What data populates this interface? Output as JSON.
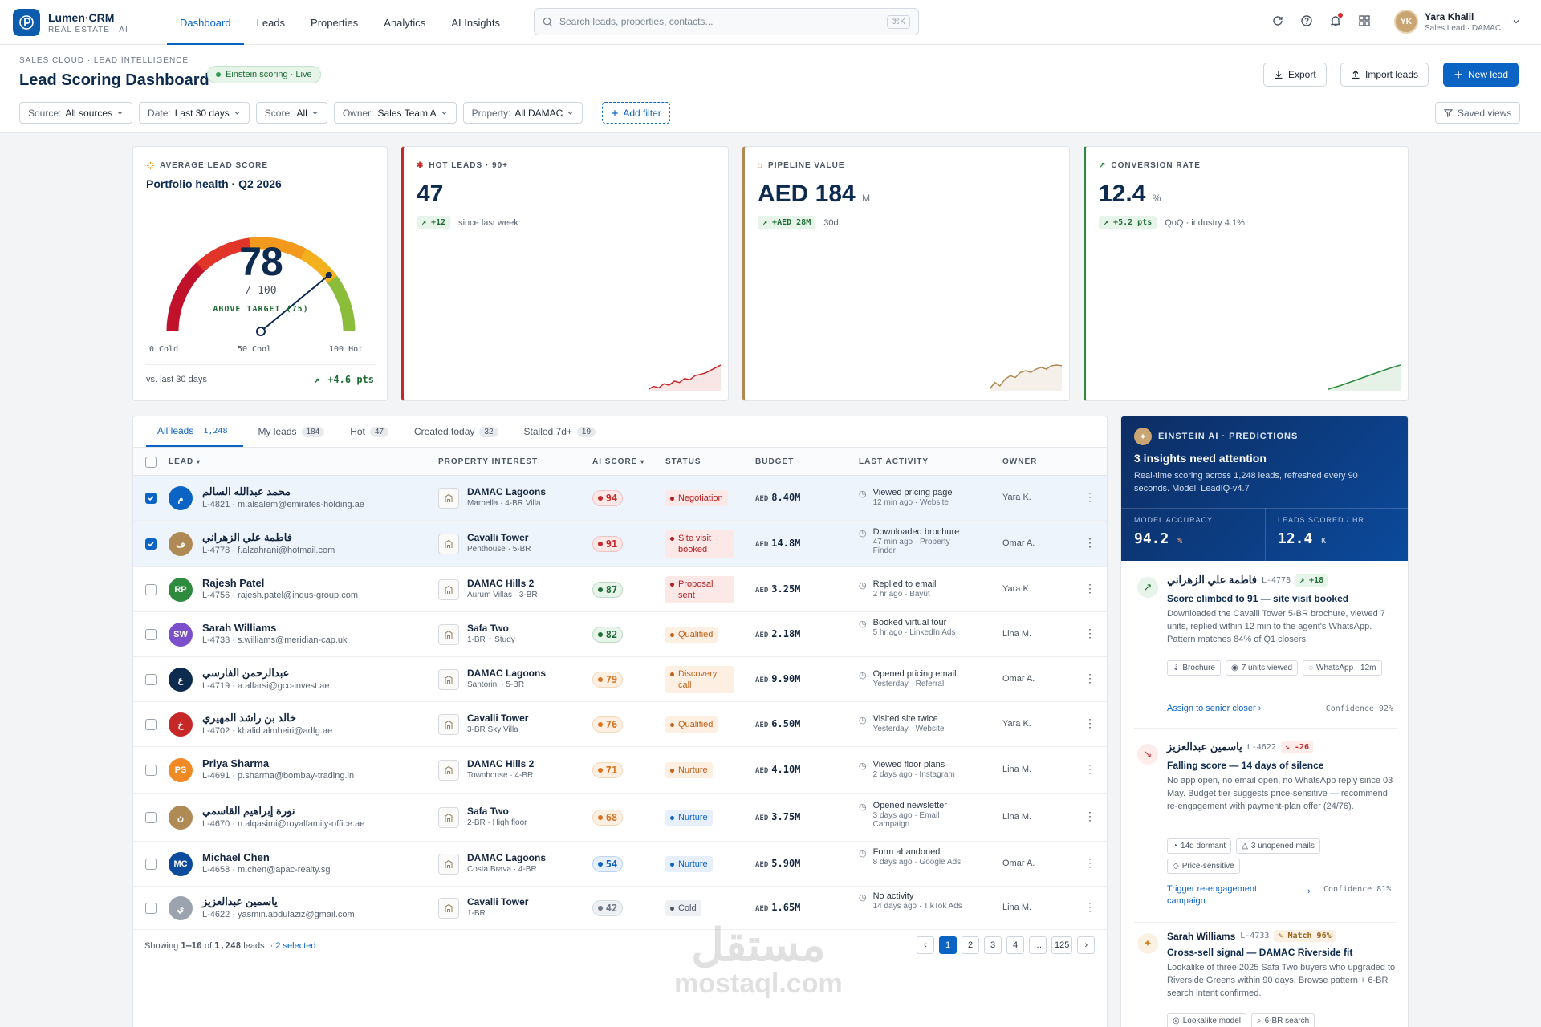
{
  "app": {
    "name": "Lumen·CRM",
    "sub": "REAL ESTATE · AI"
  },
  "nav": {
    "tabs": [
      "Dashboard",
      "Leads",
      "Properties",
      "Analytics",
      "AI Insights"
    ]
  },
  "search": {
    "placeholder": "Search leads, properties, contacts...",
    "shortcut": "⌘K"
  },
  "user": {
    "initials": "YK",
    "name": "Yara Khalil",
    "role": "Sales Lead · DAMAC"
  },
  "header": {
    "breadcrumb": "SALES CLOUD · LEAD INTELLIGENCE",
    "title": "Lead Scoring Dashboard",
    "live": "Einstein scoring · Live",
    "export": "Export",
    "import": "Import leads",
    "new": "New lead"
  },
  "filters": [
    {
      "k": "Source:",
      "v": "All sources"
    },
    {
      "k": "Date:",
      "v": "Last 30 days"
    },
    {
      "k": "Score:",
      "v": "All"
    },
    {
      "k": "Owner:",
      "v": "Sales Team A"
    },
    {
      "k": "Property:",
      "v": "All DAMAC"
    }
  ],
  "add_filter": "Add filter",
  "saved_views": "Saved views",
  "gauge": {
    "label": "AVERAGE LEAD SCORE",
    "title": "Portfolio health · Q2 2026",
    "value": "78",
    "max": "/ 100",
    "note": "ABOVE TARGET (75)",
    "value_num": 78,
    "min_label": "0 Cold",
    "mid_label": "50 Cool",
    "max_label": "100 Hot",
    "footer": "vs. last 30 days",
    "delta": "+4.6 pts",
    "colors": {
      "cold": "#c0122b",
      "warm": "#f39a1e",
      "hot": "#2e8b3e"
    }
  },
  "kpis": [
    {
      "label": "HOT LEADS · 90+",
      "value": "47",
      "unit": "",
      "chip": "+12",
      "note": "since last week",
      "color": "#c62828",
      "spark": [
        3,
        4,
        3.5,
        5,
        4.5,
        6,
        5.5,
        7,
        6.5,
        8,
        8.5,
        9,
        10,
        11,
        12
      ]
    },
    {
      "label": "PIPELINE VALUE",
      "value": "AED 184",
      "unit": "M",
      "chip": "+AED 28M",
      "note": "30d",
      "color": "#b08a55",
      "spark": [
        3,
        5,
        4,
        6,
        7,
        6.5,
        8,
        8.5,
        8,
        9,
        9.5,
        9,
        10,
        10.2,
        10
      ]
    },
    {
      "label": "CONVERSION RATE",
      "value": "12.4",
      "unit": "%",
      "chip": "+5.2 pts",
      "note": "QoQ · industry 4.1%",
      "color": "#2e8b3e",
      "spark": [
        2,
        2.5,
        3,
        3.6,
        4.2,
        4.8,
        5.4,
        6,
        6.6,
        7.2,
        7.8,
        8.4,
        9,
        9.5,
        10
      ]
    }
  ],
  "table": {
    "tabs": [
      {
        "label": "All leads",
        "count": "1,248"
      },
      {
        "label": "My leads",
        "count": "184"
      },
      {
        "label": "Hot",
        "count": "47"
      },
      {
        "label": "Created today",
        "count": "32"
      },
      {
        "label": "Stalled 7d+",
        "count": "19"
      }
    ],
    "headers": [
      "LEAD",
      "PROPERTY INTEREST",
      "AI SCORE",
      "STATUS",
      "BUDGET",
      "LAST ACTIVITY",
      "OWNER"
    ],
    "rows": [
      {
        "sel": true,
        "initial": "م",
        "avc": "#0b63c4",
        "name": "محمد عبدالله السالم",
        "sub": "L-4821 · m.alsalem@emirates-holding.ae",
        "prop": "DAMAC Lagoons",
        "psub": "Marbella · 4-BR Villa",
        "score": "94",
        "tier": "hot",
        "status": "Negotiation",
        "st": "red",
        "ccy": "AED",
        "budget": "8.40M",
        "act": "Viewed pricing page",
        "asub": "12 min ago · Website",
        "owner": "Yara K."
      },
      {
        "sel": true,
        "initial": "ف",
        "avc": "#b08a55",
        "name": "فاطمة علي الزهراني",
        "sub": "L-4778 · f.alzahrani@hotmail.com",
        "prop": "Cavalli Tower",
        "psub": "Penthouse · 5-BR",
        "score": "91",
        "tier": "hot",
        "status": "Site visit booked",
        "st": "red",
        "ccy": "AED",
        "budget": "14.8M",
        "act": "Downloaded brochure",
        "asub": "47 min ago · Property Finder",
        "owner": "Omar A."
      },
      {
        "sel": false,
        "initial": "RP",
        "avc": "#2e8b3e",
        "name": "Rajesh Patel",
        "sub": "L-4756 · rajesh.patel@indus-group.com",
        "prop": "DAMAC Hills 2",
        "psub": "Aurum Villas · 3-BR",
        "score": "87",
        "tier": "good",
        "status": "Proposal sent",
        "st": "red",
        "ccy": "AED",
        "budget": "3.25M",
        "act": "Replied to email",
        "asub": "2 hr ago · Bayut",
        "owner": "Yara K."
      },
      {
        "sel": false,
        "initial": "SW",
        "avc": "#7b4fc9",
        "name": "Sarah Williams",
        "sub": "L-4733 · s.williams@meridian-cap.uk",
        "prop": "Safa Two",
        "psub": "1-BR + Study",
        "score": "82",
        "tier": "good",
        "status": "Qualified",
        "st": "orange",
        "ccy": "AED",
        "budget": "2.18M",
        "act": "Booked virtual tour",
        "asub": "5 hr ago · LinkedIn Ads",
        "owner": "Lina M."
      },
      {
        "sel": false,
        "initial": "ع",
        "avc": "#0d2a4f",
        "name": "عبدالرحمن الفارسي",
        "sub": "L-4719 · a.alfarsi@gcc-invest.ae",
        "prop": "DAMAC Lagoons",
        "psub": "Santorini · 5-BR",
        "score": "79",
        "tier": "warm",
        "status": "Discovery call",
        "st": "orange",
        "ccy": "AED",
        "budget": "9.90M",
        "act": "Opened pricing email",
        "asub": "Yesterday · Referral",
        "owner": "Omar A."
      },
      {
        "sel": false,
        "initial": "خ",
        "avc": "#c62828",
        "name": "خالد بن راشد المهيري",
        "sub": "L-4702 · khalid.almheiri@adfg.ae",
        "prop": "Cavalli Tower",
        "psub": "3-BR Sky Villa",
        "score": "76",
        "tier": "warm",
        "status": "Qualified",
        "st": "orange",
        "ccy": "AED",
        "budget": "6.50M",
        "act": "Visited site twice",
        "asub": "Yesterday · Website",
        "owner": "Yara K."
      },
      {
        "sel": false,
        "initial": "PS",
        "avc": "#f08a24",
        "name": "Priya Sharma",
        "sub": "L-4691 · p.sharma@bombay-trading.in",
        "prop": "DAMAC Hills 2",
        "psub": "Townhouse · 4-BR",
        "score": "71",
        "tier": "warm",
        "status": "Nurture",
        "st": "orange",
        "ccy": "AED",
        "budget": "4.10M",
        "act": "Viewed floor plans",
        "asub": "2 days ago · Instagram",
        "owner": "Lina M."
      },
      {
        "sel": false,
        "initial": "ن",
        "avc": "#b08a55",
        "name": "نورة إبراهيم القاسمي",
        "sub": "L-4670 · n.alqasimi@royalfamily-office.ae",
        "prop": "Safa Two",
        "psub": "2-BR · High floor",
        "score": "68",
        "tier": "warm",
        "status": "Nurture",
        "st": "blue",
        "ccy": "AED",
        "budget": "3.75M",
        "act": "Opened newsletter",
        "asub": "3 days ago · Email Campaign",
        "owner": "Lina M."
      },
      {
        "sel": false,
        "initial": "MC",
        "avc": "#0b4a9c",
        "name": "Michael Chen",
        "sub": "L-4658 · m.chen@apac-realty.sg",
        "prop": "DAMAC Lagoons",
        "psub": "Costa Brava · 4-BR",
        "score": "54",
        "tier": "cool",
        "status": "Nurture",
        "st": "blue",
        "ccy": "AED",
        "budget": "5.90M",
        "act": "Form abandoned",
        "asub": "8 days ago · Google Ads",
        "owner": "Omar A."
      },
      {
        "sel": false,
        "initial": "ي",
        "avc": "#9aa3ae",
        "name": "ياسمين عبدالعزيز",
        "sub": "L-4622 · yasmin.abdulaziz@gmail.com",
        "prop": "Cavalli Tower",
        "psub": "1-BR",
        "score": "42",
        "tier": "cold",
        "status": "Cold",
        "st": "grey",
        "ccy": "AED",
        "budget": "1.65M",
        "act": "No activity",
        "asub": "14 days ago · TikTok Ads",
        "owner": "Lina M."
      }
    ],
    "footer": {
      "showing": "Showing",
      "range": "1–10",
      "of": "of",
      "total": "1,248",
      "leads": "leads",
      "selected": "· 2 selected"
    },
    "pages": [
      "1",
      "2",
      "3",
      "4",
      "…",
      "125"
    ]
  },
  "einstein": {
    "label": "EINSTEIN AI · PREDICTIONS",
    "title": "3 insights need attention",
    "desc": "Real-time scoring across 1,248 leads, refreshed every 90 seconds. Model: LeadIQ-v4.7",
    "m1_label": "MODEL ACCURACY",
    "m1_value": "94.2",
    "m1_unit": "%",
    "m2_label": "LEADS SCORED / HR",
    "m2_value": "12.4",
    "m2_unit": "K",
    "insights": [
      {
        "name": "فاطمة علي الزهراني",
        "id": "L-4778",
        "badge": "+18",
        "title": "Score climbed to 91 — site visit booked",
        "text": "Downloaded the Cavalli Tower 5-BR brochure, viewed 7 units, replied within 12 min to the agent's WhatsApp. Pattern matches 84% of Q1 closers.",
        "tags": [
          "Brochure",
          "7 units viewed",
          "WhatsApp · 12m"
        ],
        "action": "Assign to senior closer",
        "conf": "Confidence 92%"
      },
      {
        "name": "ياسمين عبدالعزيز",
        "id": "L-4622",
        "badge": "-26",
        "title": "Falling score — 14 days of silence",
        "text": "No app open, no email open, no WhatsApp reply since 03 May. Budget tier suggests price-sensitive — recommend re-engagement with payment-plan offer (24/76).",
        "tags": [
          "14d dormant",
          "3 unopened mails",
          "Price-sensitive"
        ],
        "action": "Trigger re-engagement campaign",
        "conf": "Confidence 81%"
      },
      {
        "name": "Sarah Williams",
        "id": "L-4733",
        "badge": "Match 96%",
        "title": "Cross-sell signal — DAMAC Riverside fit",
        "text": "Lookalike of three 2025 Safa Two buyers who upgraded to Riverside Greens within 90 days. Browse pattern + 6-BR search intent confirmed.",
        "tags": [
          "Lookalike model",
          "6-BR search"
        ]
      }
    ]
  },
  "watermark": {
    "ar": "مستقل",
    "en": "mostaql.com"
  }
}
